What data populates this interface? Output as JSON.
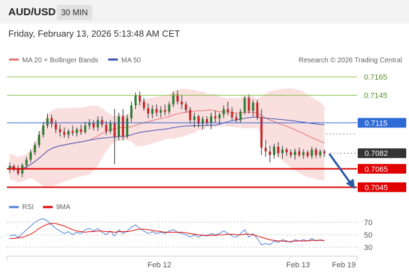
{
  "header": {
    "symbol": "AUD/USD",
    "timeframe": "30 MIN"
  },
  "datetime": "Friday, February 13, 2026 5:13:48 AM CET",
  "legend": {
    "bb_label": "MA 20 + Bollinger Bands",
    "ma50_label": "MA 50",
    "rsi_label": "RSI",
    "ma9_label": "9MA"
  },
  "source": "Research © 2026 Trading Central",
  "colors": {
    "bullish": "#2e7d32",
    "bearish": "#c62828",
    "bollinger": "#f6c4c4",
    "ma20": "#e57373",
    "ma50": "#3f51b5",
    "support": "#e00000",
    "resistance": "#8cc152",
    "current": "#2f6ad6",
    "rsi": "#4a7fd4",
    "rsi_ma": "#e00000"
  },
  "chart_data": [
    {
      "type": "line",
      "title": "",
      "ylim": [
        0.7034,
        0.7177
      ],
      "levels": [
        {
          "value": 0.7165,
          "label": "0.7165",
          "kind": "resistance"
        },
        {
          "value": 0.7145,
          "label": "0.7145",
          "kind": "resistance"
        },
        {
          "value": 0.7115,
          "label": "0.7115",
          "kind": "pivot"
        },
        {
          "value": 0.7082,
          "label": "0.7082",
          "kind": "current"
        },
        {
          "value": 0.7065,
          "label": "0.7065",
          "kind": "support"
        },
        {
          "value": 0.7045,
          "label": "0.7045",
          "kind": "support"
        }
      ],
      "x_labels": [
        "Feb 12",
        "Feb 13",
        "Feb 19"
      ],
      "ohlc": [
        [
          0.7064,
          0.7072,
          0.706,
          0.7068
        ],
        [
          0.7068,
          0.707,
          0.7062,
          0.7064
        ],
        [
          0.7064,
          0.7069,
          0.7058,
          0.706
        ],
        [
          0.706,
          0.7071,
          0.7056,
          0.7069
        ],
        [
          0.7069,
          0.7078,
          0.7066,
          0.7075
        ],
        [
          0.7075,
          0.7086,
          0.7072,
          0.7083
        ],
        [
          0.7083,
          0.7094,
          0.708,
          0.7091
        ],
        [
          0.7091,
          0.7106,
          0.7088,
          0.7102
        ],
        [
          0.7102,
          0.7116,
          0.7099,
          0.7112
        ],
        [
          0.7112,
          0.7125,
          0.7109,
          0.712
        ],
        [
          0.712,
          0.7124,
          0.711,
          0.7114
        ],
        [
          0.7114,
          0.7118,
          0.7104,
          0.7108
        ],
        [
          0.7108,
          0.7113,
          0.71,
          0.7105
        ],
        [
          0.7105,
          0.711,
          0.7099,
          0.7102
        ],
        [
          0.7102,
          0.7108,
          0.7098,
          0.7106
        ],
        [
          0.7106,
          0.7112,
          0.7101,
          0.7104
        ],
        [
          0.7104,
          0.711,
          0.71,
          0.7108
        ],
        [
          0.7108,
          0.7113,
          0.7102,
          0.7105
        ],
        [
          0.7105,
          0.7116,
          0.7103,
          0.7112
        ],
        [
          0.7112,
          0.7119,
          0.7108,
          0.7115
        ],
        [
          0.7115,
          0.7118,
          0.7107,
          0.711
        ],
        [
          0.711,
          0.7122,
          0.7106,
          0.7118
        ],
        [
          0.7118,
          0.7122,
          0.711,
          0.7113
        ],
        [
          0.7113,
          0.7117,
          0.7102,
          0.7106
        ],
        [
          0.7106,
          0.7118,
          0.7103,
          0.7115
        ],
        [
          0.7115,
          0.713,
          0.707,
          0.71
        ],
        [
          0.71,
          0.7126,
          0.7096,
          0.7122
        ],
        [
          0.7122,
          0.713,
          0.7096,
          0.71
        ],
        [
          0.71,
          0.7124,
          0.7098,
          0.712
        ],
        [
          0.712,
          0.7138,
          0.7116,
          0.7134
        ],
        [
          0.7134,
          0.7148,
          0.713,
          0.7145
        ],
        [
          0.7145,
          0.7149,
          0.7134,
          0.7138
        ],
        [
          0.7138,
          0.7142,
          0.7128,
          0.7131
        ],
        [
          0.7131,
          0.7136,
          0.712,
          0.7125
        ],
        [
          0.7125,
          0.7134,
          0.712,
          0.713
        ],
        [
          0.713,
          0.7135,
          0.7122,
          0.7126
        ],
        [
          0.7126,
          0.7133,
          0.7121,
          0.7129
        ],
        [
          0.7129,
          0.7135,
          0.7123,
          0.7127
        ],
        [
          0.7127,
          0.7138,
          0.7124,
          0.7135
        ],
        [
          0.7135,
          0.7149,
          0.7132,
          0.7146
        ],
        [
          0.7146,
          0.715,
          0.7135,
          0.7138
        ],
        [
          0.7138,
          0.7145,
          0.713,
          0.7135
        ],
        [
          0.7135,
          0.7138,
          0.7126,
          0.7129
        ],
        [
          0.7129,
          0.7132,
          0.7114,
          0.7118
        ],
        [
          0.7118,
          0.7126,
          0.711,
          0.7122
        ],
        [
          0.7122,
          0.7124,
          0.711,
          0.7114
        ],
        [
          0.7114,
          0.7122,
          0.7108,
          0.7119
        ],
        [
          0.7119,
          0.7122,
          0.7112,
          0.7115
        ],
        [
          0.7115,
          0.7126,
          0.7108,
          0.7122
        ],
        [
          0.7122,
          0.7128,
          0.7115,
          0.712
        ],
        [
          0.712,
          0.7126,
          0.7113,
          0.7124
        ],
        [
          0.7124,
          0.7134,
          0.712,
          0.713
        ],
        [
          0.713,
          0.7138,
          0.7123,
          0.7127
        ],
        [
          0.7127,
          0.7132,
          0.7118,
          0.7121
        ],
        [
          0.7121,
          0.7125,
          0.7115,
          0.7118
        ],
        [
          0.7118,
          0.713,
          0.7115,
          0.7127
        ],
        [
          0.7127,
          0.7144,
          0.7124,
          0.7142
        ],
        [
          0.7142,
          0.7146,
          0.7125,
          0.7128
        ],
        [
          0.7128,
          0.714,
          0.7122,
          0.7137
        ],
        [
          0.7137,
          0.714,
          0.7118,
          0.7121
        ],
        [
          0.7121,
          0.713,
          0.708,
          0.7088
        ],
        [
          0.7088,
          0.7096,
          0.7078,
          0.7084
        ],
        [
          0.7084,
          0.709,
          0.7072,
          0.708
        ],
        [
          0.708,
          0.7092,
          0.7076,
          0.7089
        ],
        [
          0.7089,
          0.7094,
          0.7078,
          0.7082
        ],
        [
          0.7082,
          0.709,
          0.7076,
          0.7086
        ],
        [
          0.7086,
          0.7088,
          0.7079,
          0.7083
        ],
        [
          0.7083,
          0.7086,
          0.7077,
          0.708
        ],
        [
          0.708,
          0.7087,
          0.7075,
          0.7084
        ],
        [
          0.7084,
          0.7088,
          0.7078,
          0.708
        ],
        [
          0.708,
          0.7086,
          0.7076,
          0.7083
        ],
        [
          0.7083,
          0.7085,
          0.7077,
          0.7079
        ],
        [
          0.7079,
          0.7089,
          0.7076,
          0.7086
        ],
        [
          0.7086,
          0.7088,
          0.7077,
          0.708
        ],
        [
          0.708,
          0.7086,
          0.7077,
          0.7084
        ],
        [
          0.7084,
          0.7086,
          0.7078,
          0.7082
        ]
      ]
    },
    {
      "type": "line",
      "title": "",
      "ylim": [
        20,
        80
      ],
      "ticks": [
        70,
        50,
        30
      ],
      "series": [
        {
          "name": "RSI",
          "values": [
            48,
            50,
            46,
            52,
            58,
            64,
            70,
            74,
            76,
            72,
            66,
            60,
            56,
            52,
            55,
            50,
            54,
            52,
            58,
            60,
            56,
            60,
            54,
            50,
            56,
            48,
            58,
            52,
            56,
            62,
            66,
            60,
            56,
            52,
            55,
            52,
            54,
            52,
            56,
            58,
            54,
            52,
            50,
            46,
            50,
            46,
            50,
            48,
            52,
            50,
            52,
            56,
            52,
            48,
            46,
            52,
            58,
            46,
            52,
            44,
            34,
            36,
            34,
            40,
            38,
            42,
            40,
            38,
            42,
            40,
            42,
            40,
            44,
            40,
            42,
            40
          ]
        },
        {
          "name": "9MA",
          "values": [
            44,
            44,
            45,
            46,
            48,
            51,
            55,
            60,
            64,
            67,
            68,
            68,
            66,
            64,
            61,
            58,
            56,
            55,
            54,
            55,
            55,
            56,
            56,
            55,
            55,
            54,
            55,
            55,
            55,
            56,
            58,
            59,
            59,
            58,
            57,
            56,
            55,
            54,
            54,
            54,
            54,
            54,
            53,
            52,
            51,
            50,
            49,
            49,
            49,
            49,
            50,
            50,
            51,
            51,
            50,
            50,
            51,
            51,
            50,
            48,
            46,
            44,
            42,
            41,
            40,
            40,
            39,
            39,
            40,
            40,
            40,
            40,
            41,
            41,
            41,
            41
          ]
        }
      ]
    }
  ]
}
